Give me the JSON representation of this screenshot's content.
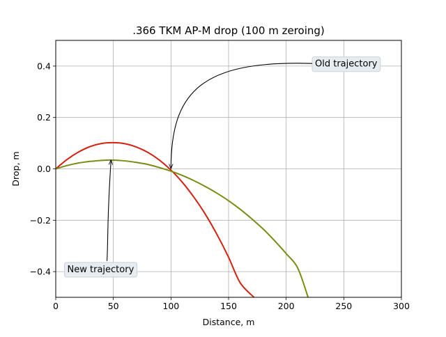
{
  "chart_data": {
    "type": "line",
    "title": ".366 TKM AP-M drop (100 m zeroing)",
    "xlabel": "Distance, m",
    "ylabel": "Drop, m",
    "xlim": [
      0,
      300
    ],
    "ylim": [
      -0.5,
      0.5
    ],
    "xticks": [
      0,
      50,
      100,
      150,
      200,
      250,
      300
    ],
    "yticks": [
      0.4,
      0.2,
      0.0,
      -0.2,
      -0.4
    ],
    "xtick_labels": [
      "0",
      "50",
      "100",
      "150",
      "200",
      "250",
      "300"
    ],
    "ytick_labels": [
      "0.4",
      "0.2",
      "0.0",
      "−0.2",
      "−0.4"
    ],
    "grid": true,
    "series": [
      {
        "color": "#d62010",
        "x": [
          0,
          10,
          20,
          30,
          40,
          50,
          60,
          70,
          80,
          90,
          100,
          110,
          120,
          130,
          140,
          150,
          160,
          172
        ],
        "y": [
          0.0,
          0.037,
          0.066,
          0.087,
          0.099,
          0.102,
          0.098,
          0.085,
          0.064,
          0.034,
          -0.005,
          -0.053,
          -0.111,
          -0.178,
          -0.256,
          -0.344,
          -0.443,
          -0.5
        ]
      },
      {
        "color": "#7a8c10",
        "x": [
          0,
          10,
          20,
          30,
          40,
          50,
          60,
          70,
          80,
          90,
          100,
          110,
          120,
          130,
          140,
          150,
          160,
          170,
          180,
          190,
          200,
          210,
          219
        ],
        "y": [
          0.0,
          0.013,
          0.023,
          0.029,
          0.033,
          0.034,
          0.031,
          0.025,
          0.017,
          0.005,
          -0.009,
          -0.026,
          -0.046,
          -0.069,
          -0.095,
          -0.124,
          -0.157,
          -0.194,
          -0.234,
          -0.28,
          -0.33,
          -0.386,
          -0.5
        ]
      }
    ],
    "annotations": [
      {
        "text": "Old trajectory",
        "point": [
          100,
          0.0
        ],
        "text_pos": [
          225,
          0.41
        ]
      },
      {
        "text": "New trajectory",
        "point": [
          48,
          0.035
        ],
        "text_pos": [
          10,
          -0.39
        ]
      }
    ]
  }
}
